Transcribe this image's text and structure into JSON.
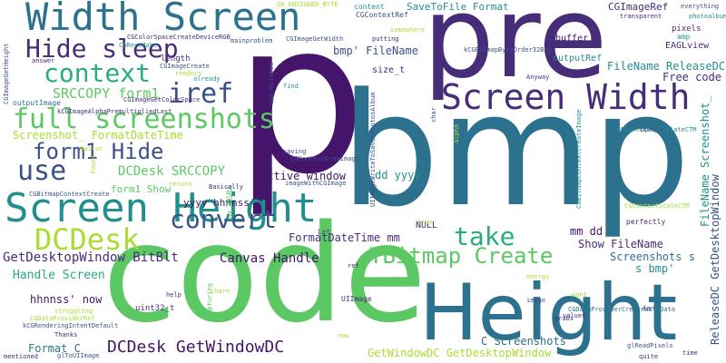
{
  "cloud": {
    "palette": {
      "deep_purple": "#44156a",
      "indigo": "#472c7a",
      "blue_violet": "#3b518b",
      "steel_blue": "#2c718e",
      "teal": "#21908d",
      "sea_green": "#27ad81",
      "green": "#5cc863",
      "lime": "#aadc32",
      "light_teal": "#3fbc73"
    },
    "words": [
      {
        "text": "p"
      },
      {
        "text": "code"
      },
      {
        "text": "bmp"
      },
      {
        "text": "pre"
      },
      {
        "text": "Height"
      },
      {
        "text": "Width Screen"
      },
      {
        "text": "Screen Height"
      },
      {
        "text": "Screen Width"
      },
      {
        "text": "Hide sleep"
      },
      {
        "text": "context"
      },
      {
        "text": "iref"
      },
      {
        "text": "full screenshots"
      },
      {
        "text": "form1 Hide"
      },
      {
        "text": "use"
      },
      {
        "text": "DCDesk"
      },
      {
        "text": "convert"
      },
      {
        "text": "take"
      },
      {
        "text": "TBitmap Create"
      },
      {
        "text": "DCDesk GetWindowDC"
      },
      {
        "text": "SRCCOPY form1"
      },
      {
        "text": "DCDesk SRCCOPY"
      },
      {
        "text": "Screenshot_ FormatDateTime"
      },
      {
        "text": "form1 Show"
      },
      {
        "text": "yyyy hhnnss'"
      },
      {
        "text": "GetDesktopWindow BitBlt"
      },
      {
        "text": "Canvas Handle"
      },
      {
        "text": "Handle Screen"
      },
      {
        "text": "hhnnss' now"
      },
      {
        "text": "Format C"
      },
      {
        "text": "active window"
      },
      {
        "text": "dd yyyy"
      },
      {
        "text": "FormatDateTime mm"
      },
      {
        "text": "mm dd"
      },
      {
        "text": "Show FileName"
      },
      {
        "text": "Screenshots s"
      },
      {
        "text": "s bmp'"
      },
      {
        "text": "C Screenshots"
      },
      {
        "text": "GetWindowDC GetDesktopWindow"
      },
      {
        "text": "bmp' FileName"
      },
      {
        "text": "SaveToFile Format"
      },
      {
        "text": "CGImageRef"
      },
      {
        "text": "FileName ReleaseDC"
      },
      {
        "text": "Free code"
      },
      {
        "text": "outputRef"
      },
      {
        "text": "EAGLview"
      },
      {
        "text": "buffer"
      },
      {
        "text": "length"
      },
      {
        "text": "size_t"
      },
      {
        "text": "NULL"
      },
      {
        "text": "uint32_t"
      },
      {
        "text": "ReleaseDC GetDesktopWindow"
      },
      {
        "text": "FileName Screenshot_"
      },
      {
        "text": "CGImageGetHeight"
      },
      {
        "text": "UIImageWriteToSavedPhotosAlbum"
      },
      {
        "text": "CGBitmapContextCreateImage"
      },
      {
        "text": "CGContextRef"
      },
      {
        "text": "kCGBitmapByteOrder32Big"
      },
      {
        "text": "CGColorSpaceCreateDeviceRGB"
      },
      {
        "text": "CGImageCreate"
      },
      {
        "text": "CGImageGetColorSpace"
      },
      {
        "text": "kCGImageAlphaPremultipliedLast"
      },
      {
        "text": "CGBitmapContextCreate"
      },
      {
        "text": "CGContextDrawImage"
      },
      {
        "text": "CGContextTranslateCTM"
      },
      {
        "text": "CGContextScaleCTM"
      },
      {
        "text": "CGDataProviderCreateWithData"
      },
      {
        "text": "kCGRenderingIntentDefault"
      },
      {
        "text": "CGDataProviderRef"
      },
      {
        "text": "glReadPixels"
      },
      {
        "text": "glToUIImage"
      },
      {
        "text": "outputImage"
      },
      {
        "text": "CGRectMake"
      },
      {
        "text": "imageWithCGImage"
      },
      {
        "text": "UIImage"
      },
      {
        "text": "Anyway"
      },
      {
        "text": "transparent"
      },
      {
        "text": "photoalbum"
      },
      {
        "text": "everything"
      },
      {
        "text": "content"
      },
      {
        "text": "putting"
      },
      {
        "text": "somewhere"
      },
      {
        "text": "CGImageGetWidth"
      },
      {
        "text": "mainproblem"
      },
      {
        "text": "Basically"
      },
      {
        "text": "appreciated"
      },
      {
        "text": "saving"
      },
      {
        "text": "return"
      },
      {
        "text": "already"
      },
      {
        "text": "renders"
      },
      {
        "text": "opaque"
      },
      {
        "text": "pixels"
      },
      {
        "text": "amp"
      },
      {
        "text": "char"
      },
      {
        "text": "alpha"
      },
      {
        "text": "malloc"
      },
      {
        "text": "found"
      },
      {
        "text": "answer"
      },
      {
        "text": "find"
      },
      {
        "text": "Let"
      },
      {
        "text": "ref"
      },
      {
        "text": "true"
      },
      {
        "text": "energy"
      },
      {
        "text": "want"
      },
      {
        "text": "perfectly"
      },
      {
        "text": "image"
      },
      {
        "text": "values"
      },
      {
        "text": "far"
      },
      {
        "text": "grabs"
      },
      {
        "text": "time"
      },
      {
        "text": "quite"
      },
      {
        "text": "mentioned"
      },
      {
        "text": "help"
      },
      {
        "text": "now"
      },
      {
        "text": "Thanks"
      },
      {
        "text": "struggling"
      },
      {
        "text": "share"
      },
      {
        "text": "capturing"
      },
      {
        "text": "Q8_UNSIGNED_BYTE"
      },
      {
        "text": "0x_RGBA"
      },
      {
        "text": "nil"
      }
    ]
  }
}
